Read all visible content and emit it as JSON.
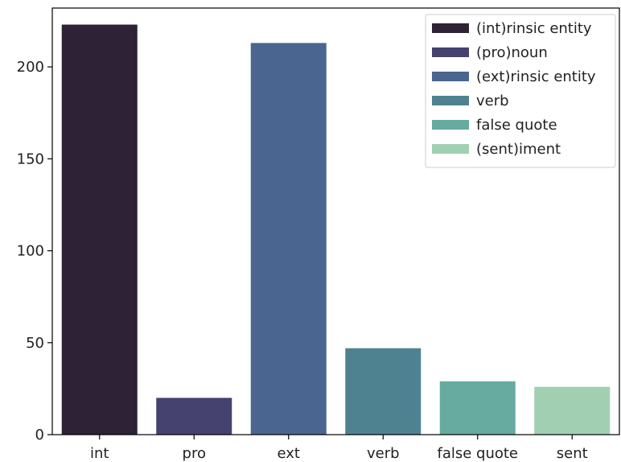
{
  "chart_data": {
    "type": "bar",
    "categories": [
      "int",
      "pro",
      "ext",
      "verb",
      "false quote",
      "sent"
    ],
    "values": [
      223,
      20,
      213,
      47,
      29,
      26
    ],
    "colors": [
      "#2d2236",
      "#45426f",
      "#4a6690",
      "#4f8291",
      "#67aba0",
      "#a1cfb2"
    ],
    "title": "",
    "xlabel": "",
    "ylabel": "",
    "ylim": [
      0,
      232
    ],
    "yticks": [
      0,
      50,
      100,
      150,
      200
    ],
    "grid": false,
    "legend": {
      "placement": "top-right",
      "entries": [
        "(int)rinsic entity",
        "(pro)noun",
        "(ext)rinsic entity",
        "verb",
        "false quote",
        "(sent)iment"
      ]
    }
  }
}
